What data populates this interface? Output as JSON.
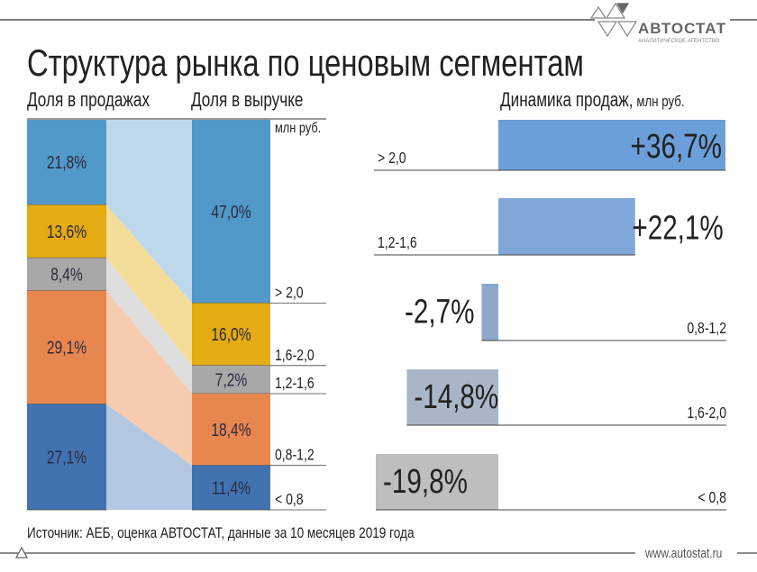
{
  "title": "Структура рынка по ценовым сегментам",
  "logo": {
    "name": "АВТОСТАТ",
    "tagline": "АНАЛИТИЧЕСКОЕ АГЕНТСТВО"
  },
  "footer": {
    "source": "Источник: АЕБ, оценка АВТОСТАТ, данные за 10 месяцев 2019 года",
    "url": "www.autostat.ru"
  },
  "chart_data": [
    {
      "type": "bar",
      "stacked": true,
      "headers": {
        "sales": "Доля в продажах",
        "revenue": "Доля в выручке",
        "unit": "млн руб."
      },
      "categories": [
        "> 2,0",
        "1,6-2,0",
        "1,2-1,6",
        "0,8-1,2",
        "< 0,8"
      ],
      "series": [
        {
          "name": "Доля в продажах",
          "values": [
            21.8,
            13.6,
            8.4,
            29.1,
            27.1
          ],
          "labels": [
            "21,8%",
            "13,6%",
            "8,4%",
            "29,1%",
            "27,1%"
          ]
        },
        {
          "name": "Доля в выручке",
          "values": [
            47.0,
            16.0,
            7.2,
            18.4,
            11.4
          ],
          "labels": [
            "47,0%",
            "16,0%",
            "7,2%",
            "18,4%",
            "11,4%"
          ]
        }
      ],
      "colors": [
        "#5199c8",
        "#e4ab12",
        "#a8a8a8",
        "#e8864f",
        "#4273b0"
      ],
      "link_colors": [
        "#bdd8eb",
        "#f4dd98",
        "#dedede",
        "#f6cbb0",
        "#b4c8e4"
      ]
    },
    {
      "type": "bar",
      "orientation": "horizontal",
      "title": "Динамика продаж,",
      "unit": "млн руб.",
      "categories": [
        "> 2,0",
        "1,2-1,6",
        "0,8-1,2",
        "1,6-2,0",
        "< 0,8"
      ],
      "values": [
        36.7,
        22.1,
        -2.7,
        -14.8,
        -19.8
      ],
      "labels": [
        "+36,7%",
        "+22,1%",
        "-2,7%",
        "-14,8%",
        "-19,8%"
      ],
      "colors": [
        "#6b9fd9",
        "#80a7d7",
        "#8ea8cb",
        "#aab6c8",
        "#bebebe"
      ]
    }
  ]
}
